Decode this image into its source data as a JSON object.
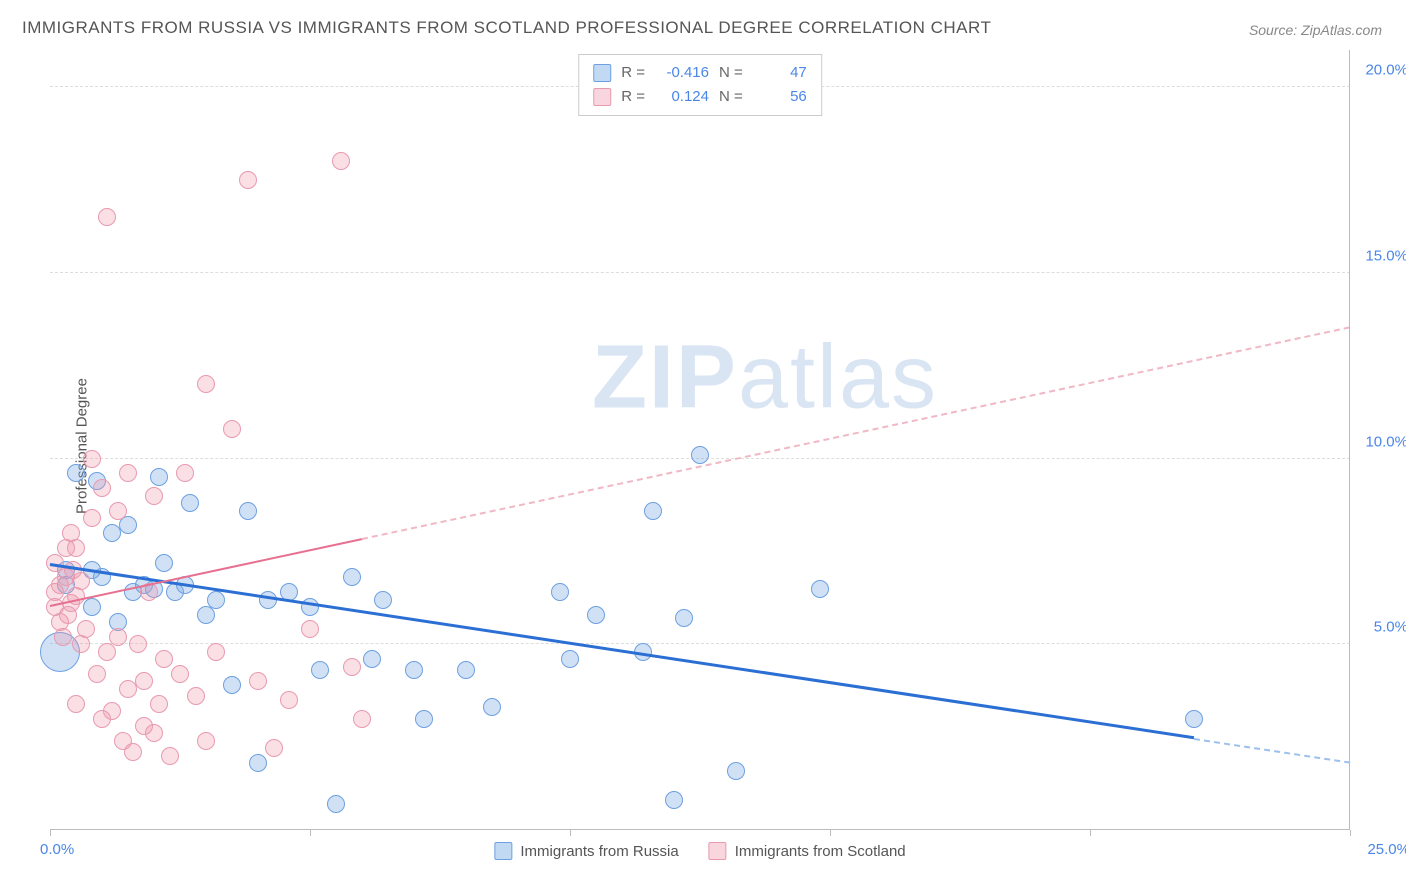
{
  "title": "IMMIGRANTS FROM RUSSIA VS IMMIGRANTS FROM SCOTLAND PROFESSIONAL DEGREE CORRELATION CHART",
  "source": "Source: ZipAtlas.com",
  "ylabel": "Professional Degree",
  "watermark_a": "ZIP",
  "watermark_b": "atlas",
  "chart": {
    "type": "scatter",
    "xlim": [
      0,
      25
    ],
    "ylim": [
      0,
      21
    ],
    "y_ticks": [
      5,
      10,
      15,
      20
    ],
    "y_tick_labels": [
      "5.0%",
      "10.0%",
      "15.0%",
      "20.0%"
    ],
    "x_tick_positions": [
      0,
      5,
      10,
      15,
      20,
      25
    ],
    "x_origin_label": "0.0%",
    "x_max_label": "25.0%",
    "background_color": "#ffffff",
    "grid_color": "#dddddd",
    "point_radius": 9,
    "series": [
      {
        "name": "Immigrants from Russia",
        "color_fill": "rgba(120,170,230,0.35)",
        "color_stroke": "#6da0e0",
        "trend_color_solid": "#2b6fd4",
        "trend_color_dash": "#9cc0ee",
        "stats": {
          "R": "-0.416",
          "N": "47"
        },
        "trend": {
          "x1": 0,
          "y1": 7.1,
          "x2": 25,
          "y2": 1.8,
          "solid_until_x": 22
        },
        "points": [
          [
            0.2,
            4.8,
            20
          ],
          [
            0.3,
            6.6
          ],
          [
            0.3,
            7.0
          ],
          [
            0.5,
            9.6
          ],
          [
            0.8,
            6.0
          ],
          [
            0.8,
            7.0
          ],
          [
            0.9,
            9.4
          ],
          [
            1.0,
            6.8
          ],
          [
            1.2,
            8.0
          ],
          [
            1.3,
            5.6
          ],
          [
            1.5,
            8.2
          ],
          [
            1.6,
            6.4
          ],
          [
            1.8,
            6.6
          ],
          [
            2.0,
            6.5
          ],
          [
            2.1,
            9.5
          ],
          [
            2.2,
            7.2
          ],
          [
            2.4,
            6.4
          ],
          [
            2.6,
            6.6
          ],
          [
            2.7,
            8.8
          ],
          [
            3.0,
            5.8
          ],
          [
            3.2,
            6.2
          ],
          [
            3.5,
            3.9
          ],
          [
            3.8,
            8.6
          ],
          [
            4.0,
            1.8
          ],
          [
            4.2,
            6.2
          ],
          [
            4.6,
            6.4
          ],
          [
            5.0,
            6.0
          ],
          [
            5.2,
            4.3
          ],
          [
            5.5,
            0.7
          ],
          [
            5.8,
            6.8
          ],
          [
            6.2,
            4.6
          ],
          [
            6.4,
            6.2
          ],
          [
            7.0,
            4.3
          ],
          [
            7.2,
            3.0
          ],
          [
            8.0,
            4.3
          ],
          [
            8.5,
            3.3
          ],
          [
            9.8,
            6.4
          ],
          [
            10.0,
            4.6
          ],
          [
            10.5,
            5.8
          ],
          [
            11.4,
            4.8
          ],
          [
            11.6,
            8.6
          ],
          [
            12.0,
            0.8
          ],
          [
            12.2,
            5.7
          ],
          [
            12.5,
            10.1
          ],
          [
            13.2,
            1.6
          ],
          [
            14.8,
            6.5
          ],
          [
            22.0,
            3.0
          ]
        ]
      },
      {
        "name": "Immigrants from Scotland",
        "color_fill": "rgba(240,150,170,0.30)",
        "color_stroke": "#e89ab0",
        "trend_color_solid": "#e77090",
        "trend_color_dash": "#f0b8c5",
        "stats": {
          "R": "0.124",
          "N": "56"
        },
        "trend": {
          "x1": 0,
          "y1": 6.0,
          "x2": 25,
          "y2": 13.5,
          "solid_until_x": 6.0
        },
        "points": [
          [
            0.1,
            6.0
          ],
          [
            0.1,
            6.4
          ],
          [
            0.1,
            7.2
          ],
          [
            0.2,
            5.6
          ],
          [
            0.2,
            6.6
          ],
          [
            0.25,
            5.2
          ],
          [
            0.3,
            6.8
          ],
          [
            0.3,
            7.6
          ],
          [
            0.35,
            5.8
          ],
          [
            0.4,
            8.0
          ],
          [
            0.4,
            6.1
          ],
          [
            0.45,
            7.0
          ],
          [
            0.5,
            3.4
          ],
          [
            0.5,
            6.3
          ],
          [
            0.5,
            7.6
          ],
          [
            0.6,
            5.0
          ],
          [
            0.6,
            6.7
          ],
          [
            0.7,
            5.4
          ],
          [
            0.8,
            8.4
          ],
          [
            0.8,
            10.0
          ],
          [
            0.9,
            4.2
          ],
          [
            1.0,
            3.0
          ],
          [
            1.0,
            9.2
          ],
          [
            1.1,
            4.8
          ],
          [
            1.1,
            16.5
          ],
          [
            1.2,
            3.2
          ],
          [
            1.3,
            5.2
          ],
          [
            1.3,
            8.6
          ],
          [
            1.4,
            2.4
          ],
          [
            1.5,
            3.8
          ],
          [
            1.5,
            9.6
          ],
          [
            1.6,
            2.1
          ],
          [
            1.7,
            5.0
          ],
          [
            1.8,
            2.8
          ],
          [
            1.8,
            4.0
          ],
          [
            1.9,
            6.4
          ],
          [
            2.0,
            2.6
          ],
          [
            2.0,
            9.0
          ],
          [
            2.1,
            3.4
          ],
          [
            2.2,
            4.6
          ],
          [
            2.3,
            2.0
          ],
          [
            2.5,
            4.2
          ],
          [
            2.6,
            9.6
          ],
          [
            2.8,
            3.6
          ],
          [
            3.0,
            2.4
          ],
          [
            3.0,
            12.0
          ],
          [
            3.2,
            4.8
          ],
          [
            3.5,
            10.8
          ],
          [
            3.8,
            17.5
          ],
          [
            4.0,
            4.0
          ],
          [
            4.3,
            2.2
          ],
          [
            4.6,
            3.5
          ],
          [
            5.0,
            5.4
          ],
          [
            5.6,
            18.0
          ],
          [
            5.8,
            4.4
          ],
          [
            6.0,
            3.0
          ]
        ]
      }
    ]
  },
  "legend": {
    "stats_labels": {
      "R": "R =",
      "N": "N ="
    },
    "bottom_items": [
      "Immigrants from Russia",
      "Immigrants from Scotland"
    ]
  }
}
